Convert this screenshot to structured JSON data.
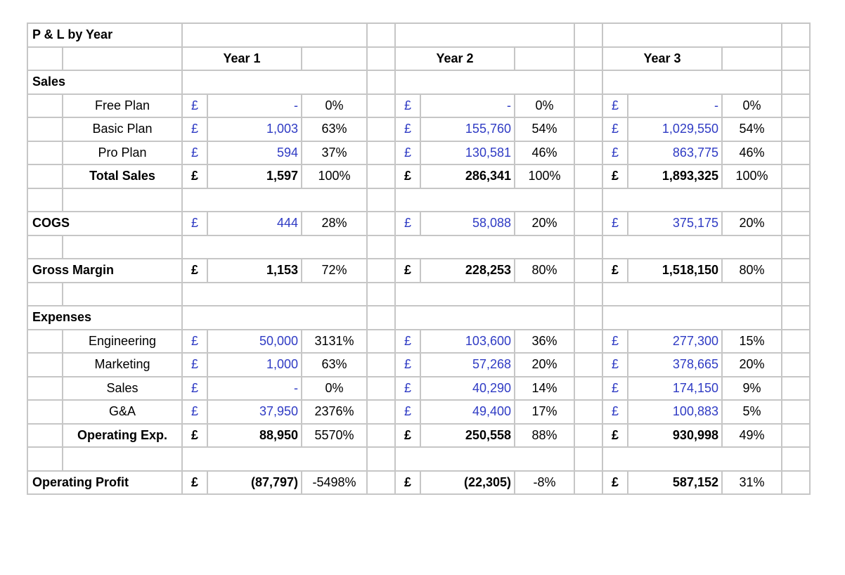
{
  "sheet": {
    "title": "P & L by Year",
    "year_headers": [
      "Year 1",
      "Year 2",
      "Year 3"
    ],
    "currency": "£",
    "rows": [
      {
        "kind": "section",
        "label": "Sales"
      },
      {
        "kind": "item",
        "label": "Free Plan",
        "cells": [
          {
            "v": "-",
            "p": "0%"
          },
          {
            "v": "-",
            "p": "0%"
          },
          {
            "v": "-",
            "p": "0%"
          }
        ],
        "blue": true,
        "bold": false
      },
      {
        "kind": "item",
        "label": "Basic Plan",
        "cells": [
          {
            "v": "1,003",
            "p": "63%"
          },
          {
            "v": "155,760",
            "p": "54%"
          },
          {
            "v": "1,029,550",
            "p": "54%"
          }
        ],
        "blue": true,
        "bold": false
      },
      {
        "kind": "item",
        "label": "Pro Plan",
        "cells": [
          {
            "v": "594",
            "p": "37%"
          },
          {
            "v": "130,581",
            "p": "46%"
          },
          {
            "v": "863,775",
            "p": "46%"
          }
        ],
        "blue": true,
        "bold": false
      },
      {
        "kind": "total",
        "label": "Total Sales",
        "cells": [
          {
            "v": "1,597",
            "p": "100%"
          },
          {
            "v": "286,341",
            "p": "100%"
          },
          {
            "v": "1,893,325",
            "p": "100%"
          }
        ],
        "blue": false,
        "bold": true
      },
      {
        "kind": "blank"
      },
      {
        "kind": "topline",
        "label": "COGS",
        "cells": [
          {
            "v": "444",
            "p": "28%"
          },
          {
            "v": "58,088",
            "p": "20%"
          },
          {
            "v": "375,175",
            "p": "20%"
          }
        ],
        "blue": true,
        "bold": false
      },
      {
        "kind": "blank"
      },
      {
        "kind": "topline",
        "label": "Gross Margin",
        "cells": [
          {
            "v": "1,153",
            "p": "72%"
          },
          {
            "v": "228,253",
            "p": "80%"
          },
          {
            "v": "1,518,150",
            "p": "80%"
          }
        ],
        "blue": false,
        "bold": true
      },
      {
        "kind": "blank"
      },
      {
        "kind": "section",
        "label": "Expenses"
      },
      {
        "kind": "item",
        "label": "Engineering",
        "cells": [
          {
            "v": "50,000",
            "p": "3131%"
          },
          {
            "v": "103,600",
            "p": "36%"
          },
          {
            "v": "277,300",
            "p": "15%"
          }
        ],
        "blue": true,
        "bold": false
      },
      {
        "kind": "item",
        "label": "Marketing",
        "cells": [
          {
            "v": "1,000",
            "p": "63%"
          },
          {
            "v": "57,268",
            "p": "20%"
          },
          {
            "v": "378,665",
            "p": "20%"
          }
        ],
        "blue": true,
        "bold": false
      },
      {
        "kind": "item",
        "label": "Sales",
        "cells": [
          {
            "v": "-",
            "p": "0%"
          },
          {
            "v": "40,290",
            "p": "14%"
          },
          {
            "v": "174,150",
            "p": "9%"
          }
        ],
        "blue": true,
        "bold": false
      },
      {
        "kind": "item",
        "label": "G&A",
        "cells": [
          {
            "v": "37,950",
            "p": "2376%"
          },
          {
            "v": "49,400",
            "p": "17%"
          },
          {
            "v": "100,883",
            "p": "5%"
          }
        ],
        "blue": true,
        "bold": false
      },
      {
        "kind": "total",
        "label": "Operating Exp.",
        "cells": [
          {
            "v": "88,950",
            "p": "5570%"
          },
          {
            "v": "250,558",
            "p": "88%"
          },
          {
            "v": "930,998",
            "p": "49%"
          }
        ],
        "blue": false,
        "bold": true
      },
      {
        "kind": "blank"
      },
      {
        "kind": "topline",
        "label": "Operating Profit",
        "cells": [
          {
            "v": "(87,797)",
            "p": "-5498%"
          },
          {
            "v": "(22,305)",
            "p": "-8%"
          },
          {
            "v": "587,152",
            "p": "31%"
          }
        ],
        "blue": false,
        "bold": true,
        "finalLine": true
      }
    ]
  }
}
